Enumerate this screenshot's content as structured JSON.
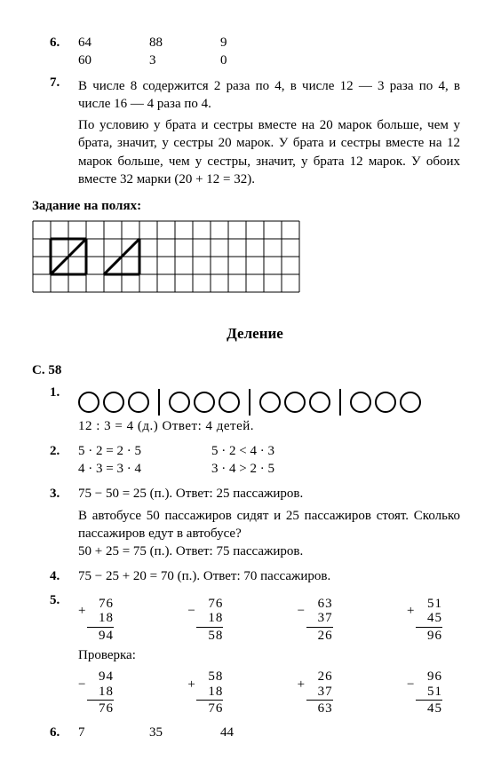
{
  "ex6top": {
    "label": "6.",
    "r1": [
      "64",
      "88",
      "9"
    ],
    "r2": [
      "60",
      "3",
      "0"
    ]
  },
  "ex7": {
    "label": "7.",
    "p1": "В числе 8 содержится 2 раза по 4, в числе 12 — 3 раза по 4, в числе 16 — 4 раза по 4.",
    "p2": "По условию у брата и сестры вместе на 20 марок больше, чем у брата, значит, у сестры 20 марок. У брата и сестры вместе на 12 марок больше, чем у сестры, значит, у брата 12 марок. У обоих вместе 32 марки (20 + 12 = 32)."
  },
  "margintask": {
    "title": "Задание на полях:",
    "cols": 15,
    "rows": 4,
    "cell": 20,
    "stroke": "#000000",
    "strokeThick": 3
  },
  "section": "Деление",
  "pageRef": "С. 58",
  "ex1": {
    "label": "1.",
    "groups": 4,
    "perGroup": 3,
    "line": "12 : 3 = 4 (д.) Ответ: 4 детей."
  },
  "ex2": {
    "label": "2.",
    "colA": [
      "5 · 2 = 2 · 5",
      "4 · 3 = 3 · 4"
    ],
    "colB": [
      "5 · 2 < 4 · 3",
      "3 · 4 > 2 · 5"
    ]
  },
  "ex3": {
    "label": "3.",
    "l1": "75 − 50 = 25 (п.). Ответ: 25 пассажиров.",
    "l2": "В автобусе 50 пассажиров сидят и 25 пассажиров стоят. Сколько пассажиров едут в автобусе?",
    "l3": "50 + 25 = 75 (п.). Ответ: 75 пассажиров."
  },
  "ex4": {
    "label": "4.",
    "line": "75 − 25 + 20 = 70 (п.). Ответ: 70 пассажиров."
  },
  "ex5": {
    "label": "5.",
    "check": "Проверка:",
    "sums": [
      {
        "sign": "+",
        "a": "76",
        "b": "18",
        "r": "94",
        "csign": "−",
        "ca": "94",
        "cb": "18",
        "cr": "76"
      },
      {
        "sign": "−",
        "a": "76",
        "b": "18",
        "r": "58",
        "csign": "+",
        "ca": "58",
        "cb": "18",
        "cr": "76"
      },
      {
        "sign": "−",
        "a": "63",
        "b": "37",
        "r": "26",
        "csign": "+",
        "ca": "26",
        "cb": "37",
        "cr": "63"
      },
      {
        "sign": "+",
        "a": "51",
        "b": "45",
        "r": "96",
        "csign": "−",
        "ca": "96",
        "cb": "51",
        "cr": "45"
      }
    ]
  },
  "ex6bot": {
    "label": "6.",
    "vals": [
      "7",
      "35",
      "44"
    ]
  }
}
